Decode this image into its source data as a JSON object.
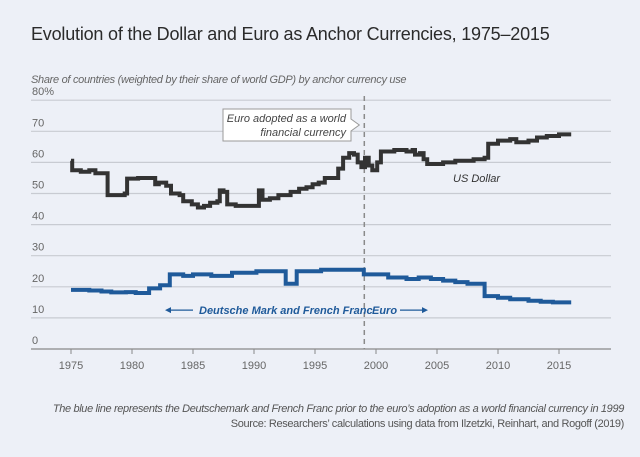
{
  "header": {
    "title": "Evolution of the Dollar and Euro as Anchor Currencies, 1975–2015",
    "subtitle": "Share of countries (weighted by their share of world GDP) by anchor currency use"
  },
  "footer": {
    "caption": "The blue line represents the Deutschemark and French Franc prior to the euro’s adoption as a world financial currency in 1999",
    "source": "Source: Researchers’ calculations using data from Ilzetzki, Reinhart, and Rogoff (2019)"
  },
  "colors": {
    "usd": "#333333",
    "eur": "#1f5a9a",
    "grid": "#c8cbd2",
    "axis": "#888888",
    "background": "#edf0f7"
  },
  "chart_data": {
    "type": "line",
    "title": "Evolution of the Dollar and Euro as Anchor Currencies, 1975–2015",
    "ylabel": "Share of countries (weighted by their share of world GDP) by anchor currency use",
    "xlabel": "",
    "xlim": [
      1972,
      2019
    ],
    "ylim": [
      0,
      80
    ],
    "x_ticks": [
      1975,
      1980,
      1985,
      1990,
      1995,
      2000,
      2005,
      2010,
      2015
    ],
    "y_ticks": [
      0,
      10,
      20,
      30,
      40,
      50,
      60,
      70,
      80
    ],
    "y_tick_labels": [
      "0",
      "10",
      "20",
      "30",
      "40",
      "50",
      "60",
      "70",
      "80%"
    ],
    "grid": true,
    "step": true,
    "series": [
      {
        "name": "US Dollar",
        "label": "US Dollar",
        "points": [
          [
            1975.0,
            60.5
          ],
          [
            1975.1,
            57.5
          ],
          [
            1975.8,
            57.0
          ],
          [
            1976.5,
            57.5
          ],
          [
            1977.0,
            56.5
          ],
          [
            1977.9,
            56.5
          ],
          [
            1978.0,
            49.5
          ],
          [
            1979.4,
            50.0
          ],
          [
            1979.6,
            54.8
          ],
          [
            1980.5,
            55.0
          ],
          [
            1981.6,
            55.0
          ],
          [
            1981.9,
            53.0
          ],
          [
            1982.2,
            53.5
          ],
          [
            1982.8,
            52.5
          ],
          [
            1983.2,
            50.0
          ],
          [
            1983.9,
            49.5
          ],
          [
            1984.2,
            47.5
          ],
          [
            1984.9,
            46.5
          ],
          [
            1985.4,
            45.5
          ],
          [
            1985.9,
            46.0
          ],
          [
            1986.4,
            47.0
          ],
          [
            1987.0,
            47.5
          ],
          [
            1987.2,
            51.0
          ],
          [
            1987.5,
            50.5
          ],
          [
            1987.8,
            46.5
          ],
          [
            1988.5,
            46.0
          ],
          [
            1989.0,
            46.0
          ],
          [
            1990.2,
            46.0
          ],
          [
            1990.4,
            51.0
          ],
          [
            1990.7,
            48.0
          ],
          [
            1991.3,
            48.5
          ],
          [
            1992.0,
            49.5
          ],
          [
            1993.0,
            50.5
          ],
          [
            1993.7,
            51.5
          ],
          [
            1994.3,
            52.0
          ],
          [
            1994.8,
            53.0
          ],
          [
            1995.3,
            53.5
          ],
          [
            1995.8,
            55.0
          ],
          [
            1996.5,
            55.0
          ],
          [
            1996.9,
            58.0
          ],
          [
            1997.3,
            61.5
          ],
          [
            1997.8,
            63.0
          ],
          [
            1998.2,
            62.5
          ],
          [
            1998.5,
            60.0
          ],
          [
            1998.8,
            58.5
          ],
          [
            1999.1,
            61.5
          ],
          [
            1999.4,
            59.0
          ],
          [
            1999.7,
            57.5
          ],
          [
            2000.1,
            60.0
          ],
          [
            2000.4,
            63.5
          ],
          [
            2001.5,
            64.0
          ],
          [
            2002.5,
            63.5
          ],
          [
            2003.0,
            64.0
          ],
          [
            2003.2,
            62.5
          ],
          [
            2003.6,
            63.0
          ],
          [
            2003.9,
            61.0
          ],
          [
            2004.2,
            59.5
          ],
          [
            2005.0,
            59.5
          ],
          [
            2005.5,
            60.0
          ],
          [
            2006.5,
            60.5
          ],
          [
            2008.0,
            61.0
          ],
          [
            2008.9,
            61.5
          ],
          [
            2009.2,
            66.0
          ],
          [
            2010.0,
            67.0
          ],
          [
            2011.0,
            67.5
          ],
          [
            2011.5,
            66.5
          ],
          [
            2012.5,
            67.0
          ],
          [
            2013.2,
            68.0
          ],
          [
            2014.0,
            68.5
          ],
          [
            2015.0,
            69.0
          ],
          [
            2016.0,
            69.0
          ]
        ]
      },
      {
        "name": "Deutsche Mark and French Franc / Euro",
        "label_pre": "Deutsche Mark and French Franc",
        "label_post": "Euro",
        "points": [
          [
            1975.0,
            19.0
          ],
          [
            1976.5,
            18.8
          ],
          [
            1977.5,
            18.5
          ],
          [
            1978.3,
            18.2
          ],
          [
            1979.5,
            18.3
          ],
          [
            1980.3,
            18.0
          ],
          [
            1981.3,
            18.0
          ],
          [
            1981.4,
            19.5
          ],
          [
            1982.3,
            20.5
          ],
          [
            1983.0,
            20.5
          ],
          [
            1983.1,
            24.0
          ],
          [
            1984.2,
            23.5
          ],
          [
            1985.0,
            24.0
          ],
          [
            1986.5,
            23.5
          ],
          [
            1988.0,
            23.5
          ],
          [
            1988.2,
            24.5
          ],
          [
            1989.5,
            24.5
          ],
          [
            1990.2,
            25.0
          ],
          [
            1992.5,
            25.0
          ],
          [
            1992.6,
            21.0
          ],
          [
            1993.4,
            21.0
          ],
          [
            1993.5,
            25.0
          ],
          [
            1994.5,
            25.0
          ],
          [
            1995.5,
            25.5
          ],
          [
            1996.5,
            25.5
          ],
          [
            1997.5,
            25.5
          ],
          [
            1998.9,
            25.5
          ],
          [
            1999.0,
            24.0
          ],
          [
            2000.5,
            24.0
          ],
          [
            2001.0,
            23.0
          ],
          [
            2002.5,
            22.5
          ],
          [
            2003.5,
            23.0
          ],
          [
            2004.5,
            22.5
          ],
          [
            2005.5,
            22.0
          ],
          [
            2006.5,
            21.5
          ],
          [
            2007.5,
            21.0
          ],
          [
            2008.7,
            21.0
          ],
          [
            2008.9,
            17.0
          ],
          [
            2010.0,
            16.5
          ],
          [
            2011.0,
            16.0
          ],
          [
            2012.5,
            15.5
          ],
          [
            2013.5,
            15.2
          ],
          [
            2014.5,
            15.0
          ],
          [
            2016.0,
            15.0
          ]
        ]
      }
    ],
    "annotations": {
      "euro_adoption_year": 1999,
      "euro_adoption_text": [
        "Euro adopted as a world",
        "financial currency"
      ],
      "usd_label": "US Dollar",
      "dm_ff_label": "Deutsche Mark and French Franc",
      "euro_label": "Euro"
    },
    "legend": "none (inline labels)"
  }
}
